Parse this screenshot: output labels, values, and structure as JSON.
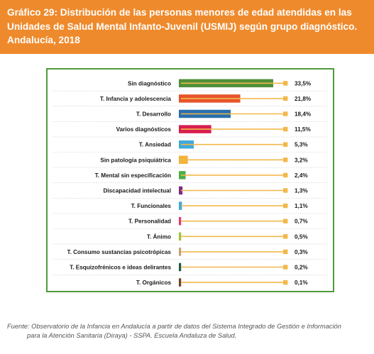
{
  "header": {
    "title": "Gráfico 29: Distribución de las personas menores de edad atendidas en las Unidades de Salud Mental Infanto-Juvenil (USMIJ) según grupo diagnóstico. Andalucía, 2018",
    "background_color": "#ef8a2c"
  },
  "chart_data": {
    "type": "bar",
    "orientation": "horizontal",
    "categories": [
      "Sin diagnóstico",
      "T. Infancia y adolescencia",
      "T. Desarrollo",
      "Varios diagnósticos",
      "T. Ansiedad",
      "Sin patología psiquiátrica",
      "T. Mental sin especificación",
      "Discapacidad intelectual",
      "T. Funcionales",
      "T. Personalidad",
      "T. Ánimo",
      "T. Consumo sustancias psicotrópicas",
      "T. Esquizofrénicos e ideas delirantes",
      "T. Orgánicos"
    ],
    "values": [
      33.5,
      21.8,
      18.4,
      11.5,
      5.3,
      3.2,
      2.4,
      1.3,
      1.1,
      0.7,
      0.5,
      0.3,
      0.2,
      0.1
    ],
    "value_labels": [
      "33,5%",
      "21,8%",
      "18,4%",
      "11,5%",
      "5,3%",
      "3,2%",
      "2,4%",
      "1,3%",
      "1,1%",
      "0,7%",
      "0,5%",
      "0,3%",
      "0,2%",
      "0,1%"
    ],
    "colors": [
      "#4f8f3a",
      "#e8542b",
      "#2a6fad",
      "#d81e4f",
      "#3fa9dc",
      "#f2b43a",
      "#4cae4c",
      "#7d2a84",
      "#3fa9dc",
      "#e8347a",
      "#9bc43b",
      "#c4a07a",
      "#1a5c4a",
      "#6b4226"
    ],
    "line_color": "#f2b84b",
    "xlim": [
      0,
      33.5
    ],
    "grid": false,
    "legend": "none",
    "frame_color": "#4e9a3b"
  },
  "footer": {
    "source_line1": "Fuente: Observatorio de la Infancia en Andalucía a partir de datos del Sistema Integrado de Gestión e Información",
    "source_line2": "para la Atención Sanitaria (Diraya) - SSPA. Escuela Andaluza de Salud."
  }
}
